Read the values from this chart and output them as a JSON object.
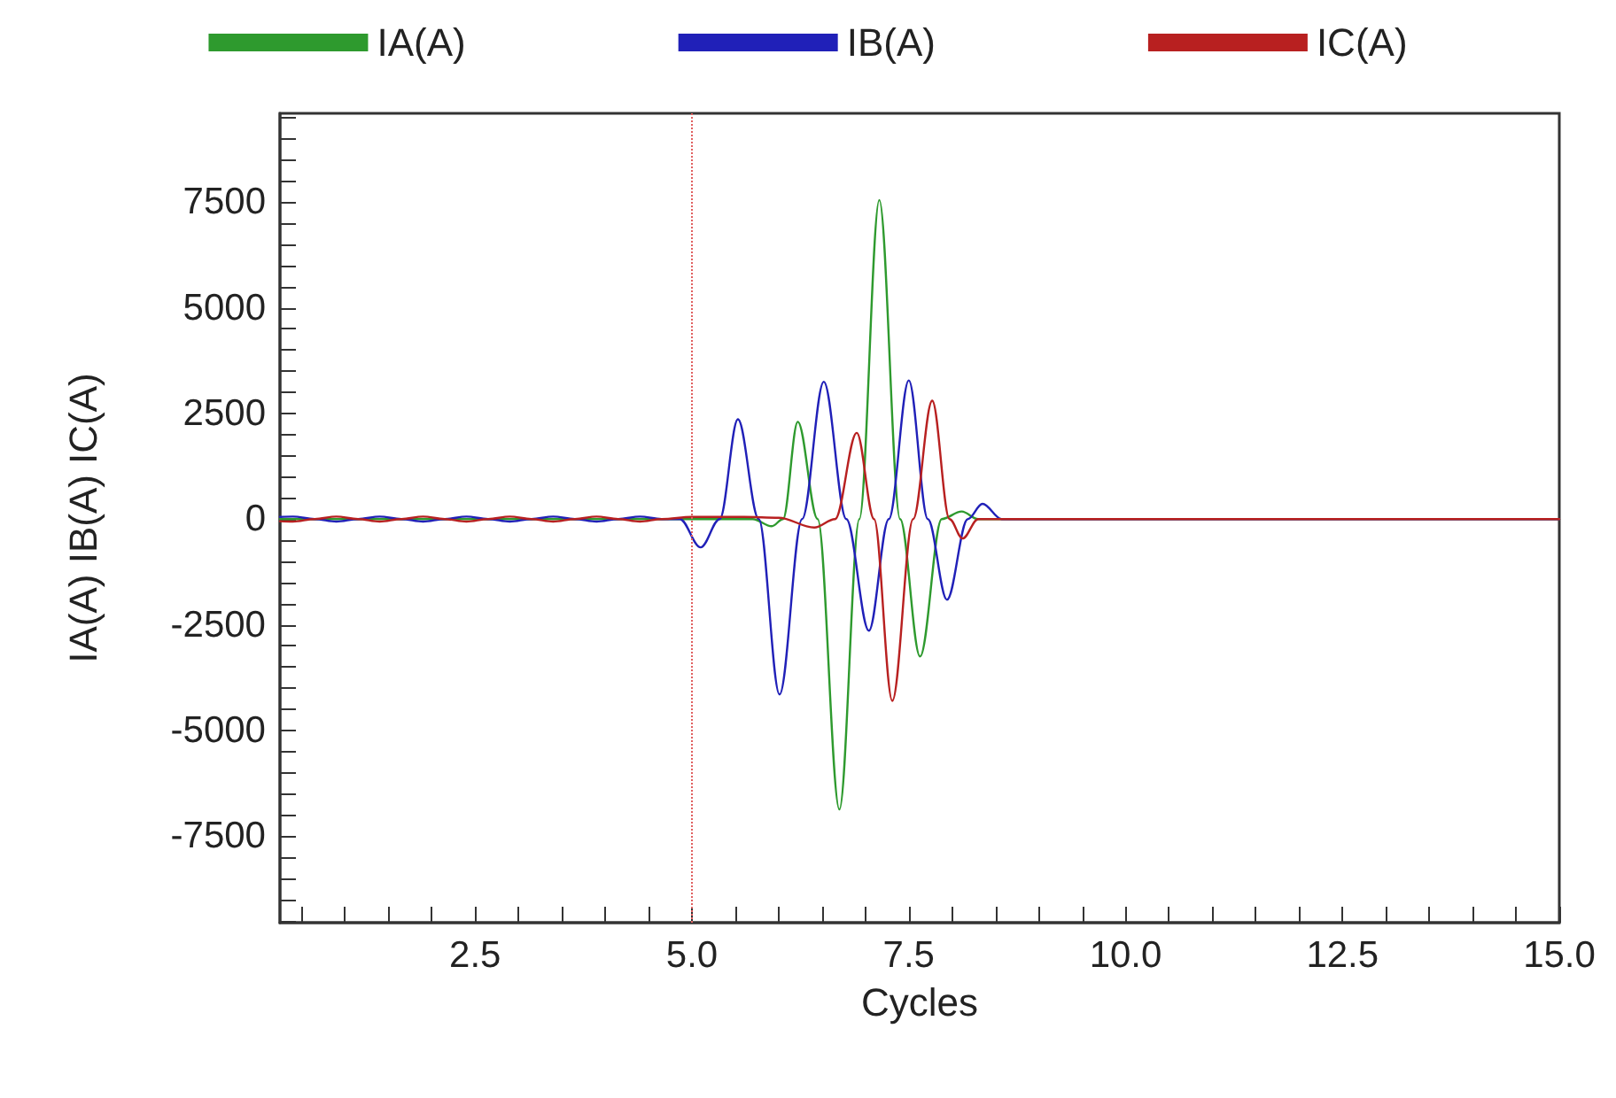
{
  "chart_data": {
    "type": "line",
    "xlabel": "Cycles",
    "ylabel": "IA(A) IB(A) IC(A)",
    "xlim": [
      0.25,
      15
    ],
    "ylim": [
      -9550,
      9600
    ],
    "xticks": [
      {
        "value": 0.5,
        "label": null
      },
      {
        "value": 1,
        "label": null
      },
      {
        "value": 1.5,
        "label": null
      },
      {
        "value": 2,
        "label": null
      },
      {
        "value": 2.5,
        "label": "2.5"
      },
      {
        "value": 3,
        "label": null
      },
      {
        "value": 3.5,
        "label": null
      },
      {
        "value": 4,
        "label": null
      },
      {
        "value": 4.5,
        "label": null
      },
      {
        "value": 5,
        "label": "5.0"
      },
      {
        "value": 5.5,
        "label": null
      },
      {
        "value": 6,
        "label": null
      },
      {
        "value": 6.5,
        "label": null
      },
      {
        "value": 7,
        "label": null
      },
      {
        "value": 7.5,
        "label": "7.5"
      },
      {
        "value": 8,
        "label": null
      },
      {
        "value": 8.5,
        "label": null
      },
      {
        "value": 9,
        "label": null
      },
      {
        "value": 9.5,
        "label": null
      },
      {
        "value": 10,
        "label": "10.0"
      },
      {
        "value": 10.5,
        "label": null
      },
      {
        "value": 11,
        "label": null
      },
      {
        "value": 11.5,
        "label": null
      },
      {
        "value": 12,
        "label": null
      },
      {
        "value": 12.5,
        "label": "12.5"
      },
      {
        "value": 13,
        "label": null
      },
      {
        "value": 13.5,
        "label": null
      },
      {
        "value": 14,
        "label": null
      },
      {
        "value": 14.5,
        "label": null
      },
      {
        "value": 15,
        "label": "15.0"
      }
    ],
    "yticks": [
      {
        "value": -9500,
        "label": null
      },
      {
        "value": -9000,
        "label": null
      },
      {
        "value": -8500,
        "label": null
      },
      {
        "value": -8000,
        "label": null
      },
      -7500,
      {
        "value": -7000,
        "label": null
      },
      {
        "value": -6500,
        "label": null
      },
      {
        "value": -6000,
        "label": null
      },
      {
        "value": -5500,
        "label": null
      },
      -5000,
      {
        "value": -4500,
        "label": null
      },
      {
        "value": -4000,
        "label": null
      },
      {
        "value": -3500,
        "label": null
      },
      {
        "value": -3000,
        "label": null
      },
      -2500,
      {
        "value": -2000,
        "label": null
      },
      {
        "value": -1500,
        "label": null
      },
      {
        "value": -1000,
        "label": null
      },
      {
        "value": -500,
        "label": null
      },
      0,
      {
        "value": 500,
        "label": null
      },
      {
        "value": 1000,
        "label": null
      },
      {
        "value": 1500,
        "label": null
      },
      {
        "value": 2000,
        "label": null
      },
      2500,
      {
        "value": 3000,
        "label": null
      },
      {
        "value": 3500,
        "label": null
      },
      {
        "value": 4000,
        "label": null
      },
      {
        "value": 4500,
        "label": null
      },
      5000,
      {
        "value": 5500,
        "label": null
      },
      {
        "value": 6000,
        "label": null
      },
      {
        "value": 6500,
        "label": null
      },
      {
        "value": 7000,
        "label": null
      },
      7500,
      {
        "value": 8000,
        "label": null
      },
      {
        "value": 8500,
        "label": null
      },
      {
        "value": 9000,
        "label": null
      },
      {
        "value": 9500,
        "label": null
      }
    ],
    "grid": false,
    "legend": "top",
    "marker": "none",
    "line_style": "solid",
    "ref_lines": [
      {
        "axis": "x",
        "value": 5,
        "label": null,
        "color": "#e06060",
        "line_style": "dotted"
      }
    ],
    "series": [
      {
        "name": "IA(A)",
        "color": "#2e9a2e",
        "x": [
          0.25,
          5.7,
          5.92,
          6.05,
          6.22,
          6.45,
          6.7,
          6.93,
          7.16,
          7.4,
          7.63,
          7.88,
          8.11,
          8.3,
          15
        ],
        "values": [
          0,
          0,
          -170,
          0,
          2300,
          0,
          -6870,
          0,
          7550,
          0,
          -3250,
          0,
          180,
          0,
          0
        ]
      },
      {
        "name": "IB(A)",
        "color": "#2020b8",
        "x": [
          0.25,
          0.4,
          0.65,
          0.9,
          1.15,
          1.4,
          1.65,
          1.9,
          2.15,
          2.4,
          2.65,
          2.9,
          3.15,
          3.4,
          3.65,
          3.9,
          4.15,
          4.4,
          4.65,
          4.86,
          5.1,
          5.32,
          5.53,
          5.77,
          6.01,
          6.27,
          6.52,
          6.78,
          7.04,
          7.27,
          7.5,
          7.72,
          7.94,
          8.18,
          8.35,
          8.57,
          15
        ],
        "values": [
          50,
          60,
          0,
          -60,
          0,
          60,
          0,
          -60,
          0,
          60,
          0,
          -60,
          0,
          60,
          0,
          -60,
          0,
          60,
          0,
          0,
          -670,
          0,
          2360,
          0,
          -4150,
          0,
          3250,
          0,
          -2640,
          0,
          3280,
          0,
          -1910,
          0,
          360,
          0,
          0
        ]
      },
      {
        "name": "IC(A)",
        "color": "#b82020",
        "x": [
          0.25,
          0.4,
          0.65,
          0.9,
          1.15,
          1.4,
          1.65,
          1.9,
          2.15,
          2.4,
          2.65,
          2.9,
          3.15,
          3.4,
          3.65,
          3.9,
          4.15,
          4.4,
          4.65,
          5.0,
          5.6,
          6.0,
          6.41,
          6.65,
          6.9,
          7.1,
          7.31,
          7.55,
          7.77,
          7.97,
          8.12,
          8.3,
          15
        ],
        "values": [
          -50,
          -60,
          0,
          60,
          0,
          -60,
          0,
          60,
          0,
          -60,
          0,
          60,
          0,
          -60,
          0,
          60,
          0,
          -60,
          0,
          50,
          50,
          30,
          -200,
          0,
          2040,
          0,
          -4300,
          0,
          2800,
          0,
          -460,
          0,
          0
        ]
      }
    ]
  }
}
